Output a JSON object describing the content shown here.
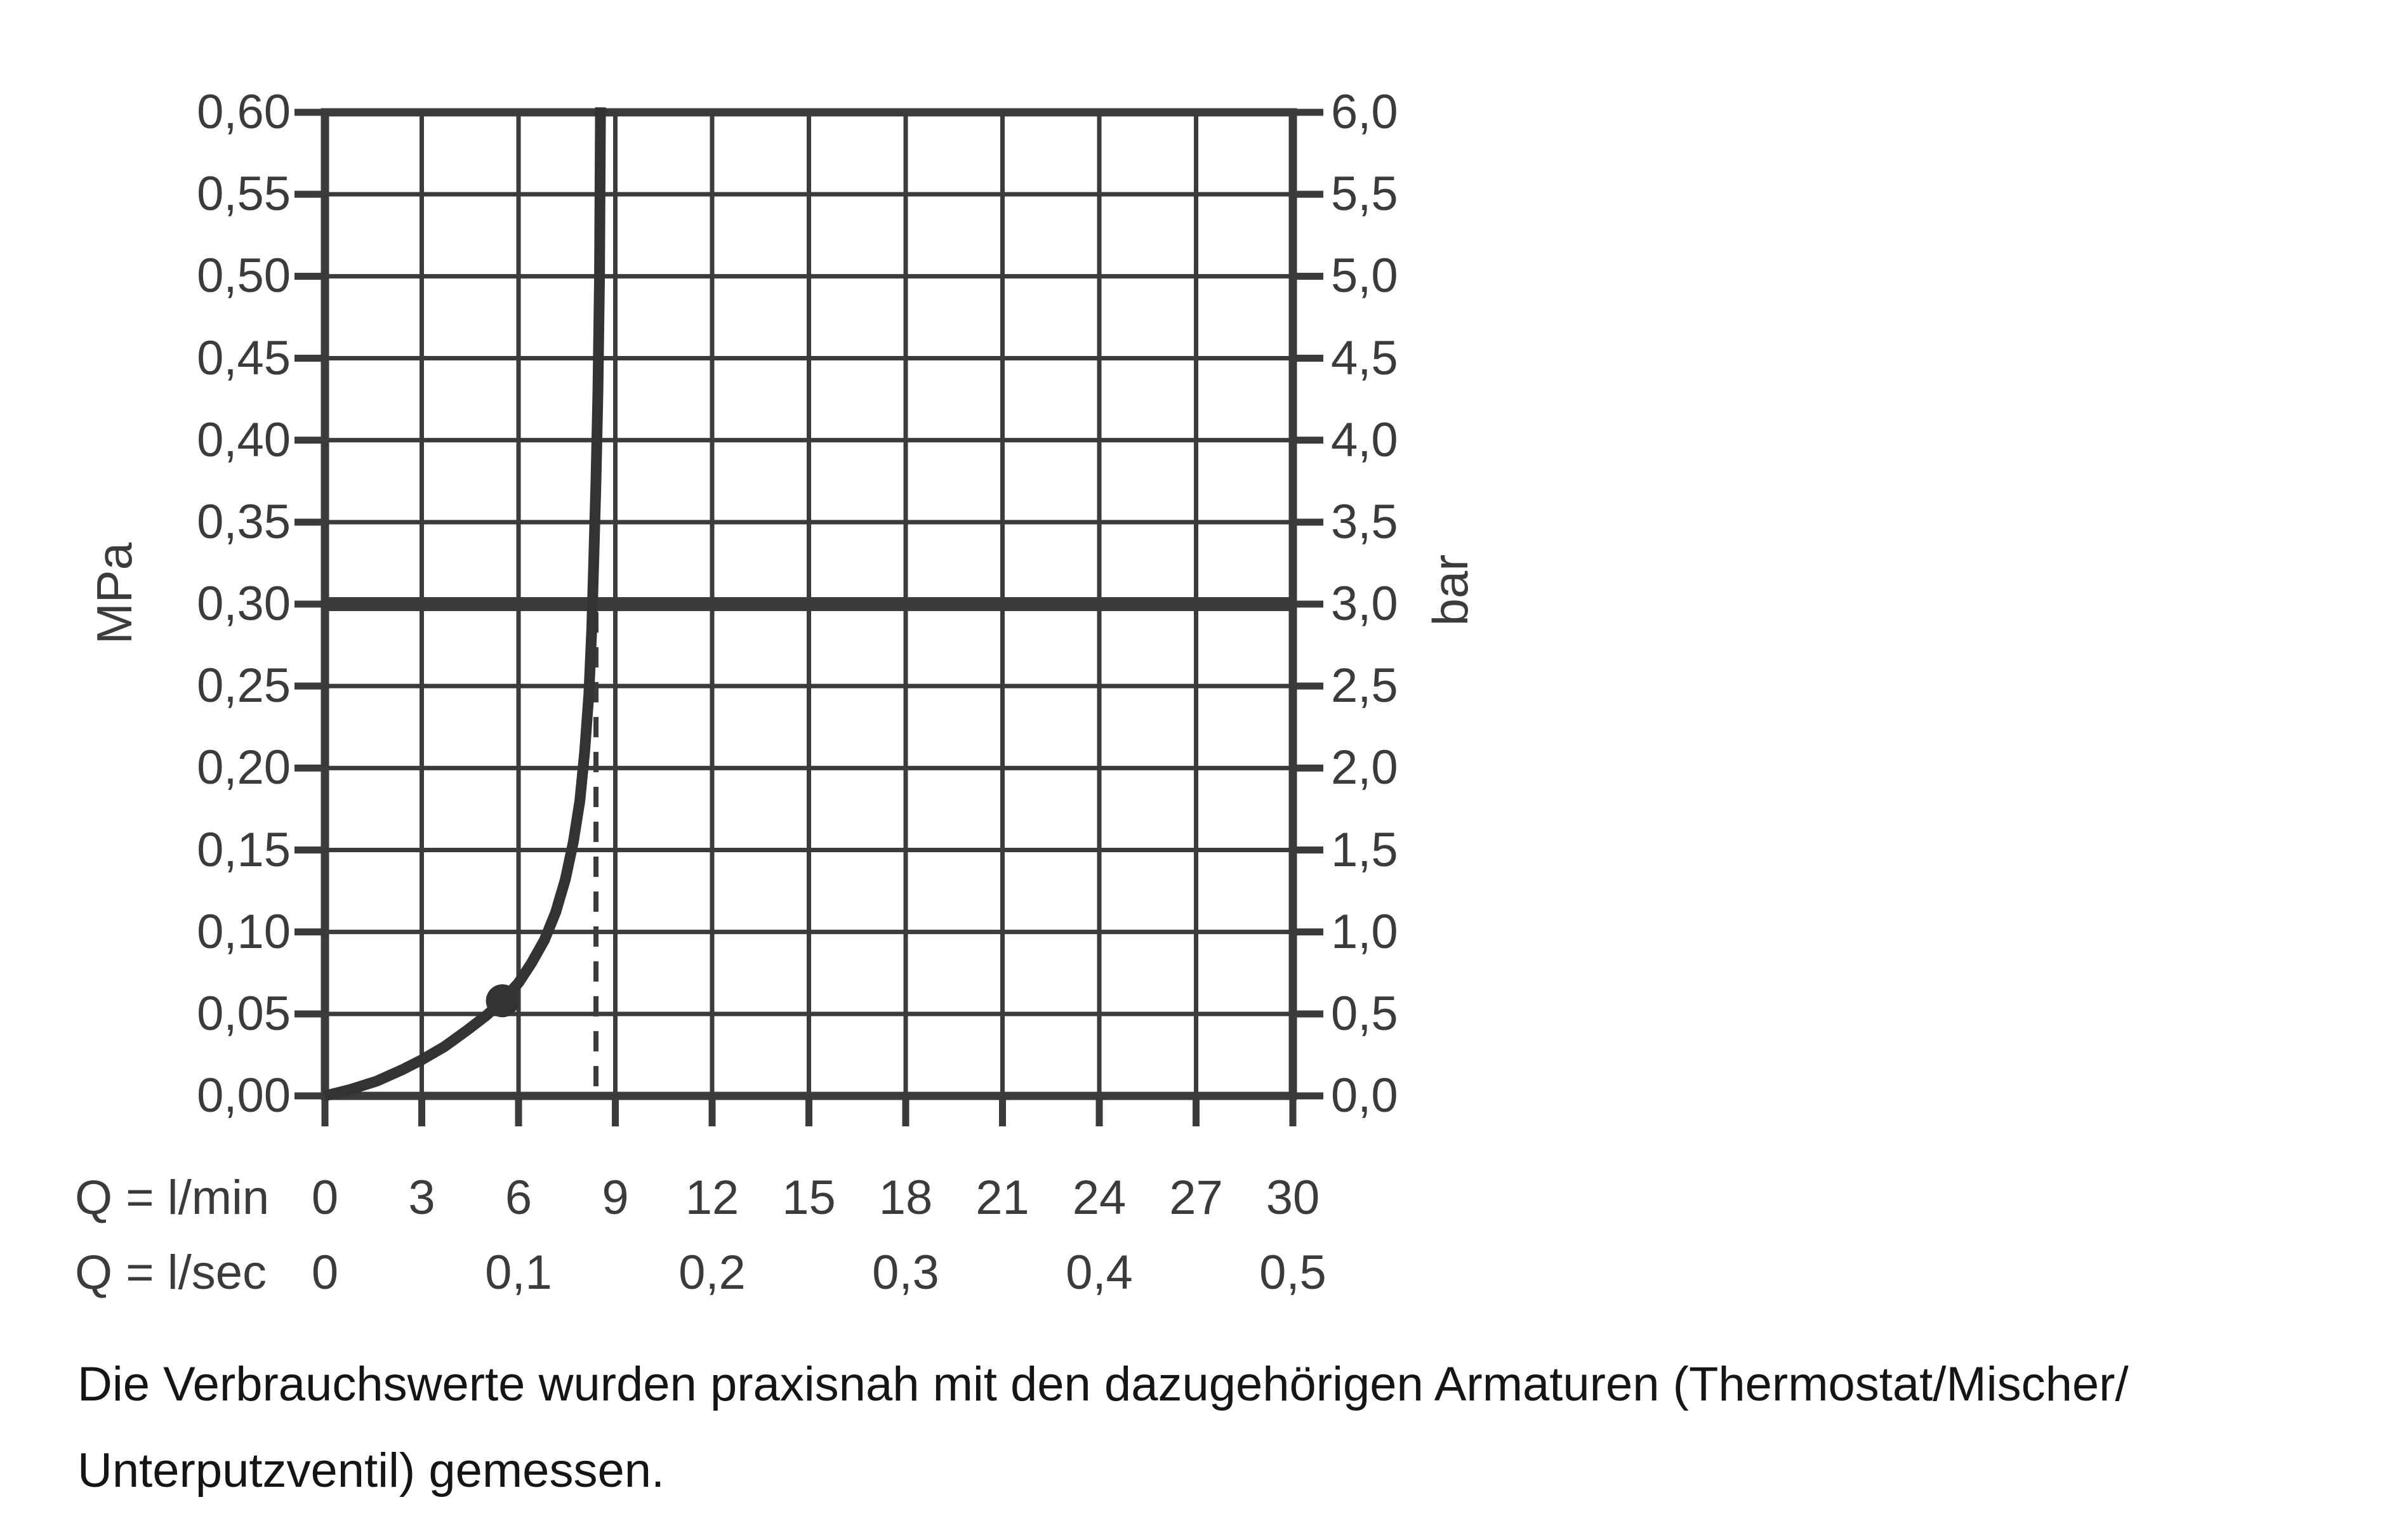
{
  "colors": {
    "ink": "#3b3b3b",
    "curve": "#333333",
    "footnote_text": "#151515",
    "background": "#ffffff"
  },
  "chart_data": {
    "type": "line",
    "title": "",
    "grid": true,
    "x_axis": {
      "label_lmin": "Q = l/min",
      "label_lsec": "Q = l/sec",
      "range_lmin": [
        0,
        30
      ],
      "ticks_lmin": {
        "values": [
          0,
          3,
          6,
          9,
          12,
          15,
          18,
          21,
          24,
          27,
          30
        ],
        "labels": [
          "0",
          "3",
          "6",
          "9",
          "12",
          "15",
          "18",
          "21",
          "24",
          "27",
          "30"
        ]
      },
      "ticks_lsec": {
        "values_lmin": [
          0,
          6,
          12,
          18,
          24,
          30
        ],
        "labels": [
          "0",
          "0,1",
          "0,2",
          "0,3",
          "0,4",
          "0,5"
        ]
      }
    },
    "y_axis_left": {
      "unit": "MPa",
      "range": [
        0,
        0.6
      ],
      "tick_values": [
        0.6,
        0.55,
        0.5,
        0.45,
        0.4,
        0.35,
        0.3,
        0.25,
        0.2,
        0.15,
        0.1,
        0.05,
        0.0
      ],
      "tick_labels": [
        "0,60",
        "0,55",
        "0,50",
        "0,45",
        "0,40",
        "0,35",
        "0,30",
        "0,25",
        "0,20",
        "0,15",
        "0,10",
        "0,05",
        "0,00"
      ]
    },
    "y_axis_right": {
      "unit": "bar",
      "range": [
        0,
        6
      ],
      "tick_values": [
        6.0,
        5.5,
        5.0,
        4.5,
        4.0,
        3.5,
        3.0,
        2.5,
        2.0,
        1.5,
        1.0,
        0.5,
        0.0
      ],
      "tick_labels": [
        "6,0",
        "5,5",
        "5,0",
        "4,5",
        "4,0",
        "3,5",
        "3,0",
        "2,5",
        "2,0",
        "1,5",
        "1,0",
        "0,5",
        "0,0"
      ]
    },
    "series": [
      {
        "name": "flow-pressure-curve",
        "points_lmin_mpa": [
          [
            0,
            0
          ],
          [
            0.8,
            0.004
          ],
          [
            1.6,
            0.009
          ],
          [
            2.4,
            0.016
          ],
          [
            3.0,
            0.022
          ],
          [
            3.7,
            0.03
          ],
          [
            4.4,
            0.04
          ],
          [
            5.0,
            0.049
          ],
          [
            5.5,
            0.058
          ],
          [
            6.0,
            0.069
          ],
          [
            6.4,
            0.081
          ],
          [
            6.8,
            0.095
          ],
          [
            7.15,
            0.112
          ],
          [
            7.45,
            0.132
          ],
          [
            7.7,
            0.155
          ],
          [
            7.9,
            0.18
          ],
          [
            8.05,
            0.21
          ],
          [
            8.18,
            0.245
          ],
          [
            8.27,
            0.285
          ],
          [
            8.33,
            0.325
          ],
          [
            8.4,
            0.375
          ],
          [
            8.46,
            0.43
          ],
          [
            8.51,
            0.5
          ],
          [
            8.54,
            0.603
          ]
        ]
      }
    ],
    "reference_line": {
      "pressure_mpa": 0.3,
      "pressure_bar": 3.0
    },
    "flow_marker": {
      "flow_lmin": 8.4,
      "top_mpa": 0.295,
      "style": "dashed"
    },
    "operating_point": {
      "flow_lmin": 5.5,
      "pressure_mpa": 0.058
    }
  },
  "footnote": {
    "line1": "Die Verbrauchswerte wurden praxisnah mit den dazugehörigen Armaturen (Thermostat/Mischer/",
    "line2": "Unterputzventil) gemessen."
  }
}
